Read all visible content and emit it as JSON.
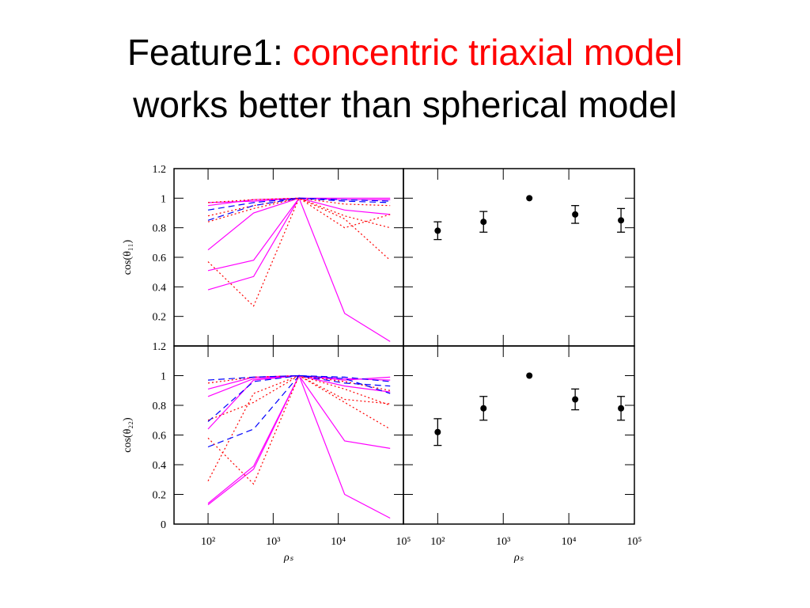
{
  "title": {
    "lead": "Feature1:",
    "highlight": "concentric triaxial model",
    "line2": "works better than spherical model"
  },
  "chart_data": [
    {
      "type": "line",
      "ylabel": "cos(θ₁₁)",
      "log_x": true,
      "xlim": [
        30,
        100000
      ],
      "ylim": [
        0,
        1.2
      ],
      "xticks": [
        {
          "value": 100,
          "label": "10²"
        },
        {
          "value": 1000,
          "label": "10³"
        },
        {
          "value": 10000,
          "label": "10⁴"
        },
        {
          "value": 100000,
          "label": "10⁵"
        }
      ],
      "yticks": [
        0.2,
        0.4,
        0.6,
        0.8,
        1,
        1.2
      ],
      "xtick_labels": false,
      "ytick_labels": true,
      "x": [
        100,
        500,
        2500,
        12500,
        62500
      ],
      "series": [
        {
          "color": "#ff00ff",
          "style": "solid",
          "values": [
            0.65,
            0.9,
            1,
            0.99,
            0.99
          ]
        },
        {
          "color": "#ff00ff",
          "style": "solid",
          "values": [
            0.51,
            0.58,
            1,
            0.92,
            0.89
          ]
        },
        {
          "color": "#ff00ff",
          "style": "solid",
          "values": [
            0.38,
            0.47,
            1,
            0.22,
            0.03
          ]
        },
        {
          "color": "#ff00ff",
          "style": "solid",
          "values": [
            0.95,
            0.99,
            1,
            1.0,
            1.0
          ]
        },
        {
          "color": "#ff00ff",
          "style": "solid",
          "values": [
            0.97,
            0.98,
            1,
            0.99,
            0.99
          ]
        },
        {
          "color": "#ff0000",
          "style": "dotted",
          "values": [
            0.57,
            0.27,
            1,
            0.8,
            0.89
          ]
        },
        {
          "color": "#ff0000",
          "style": "dotted",
          "values": [
            0.84,
            0.93,
            1,
            0.86,
            0.58
          ]
        },
        {
          "color": "#ff0000",
          "style": "dotted",
          "values": [
            0.88,
            0.95,
            1,
            0.88,
            0.8
          ]
        },
        {
          "color": "#ff0000",
          "style": "dotted",
          "values": [
            0.97,
            0.99,
            1,
            0.96,
            0.95
          ]
        },
        {
          "color": "#0000ff",
          "style": "dashed",
          "values": [
            0.85,
            0.95,
            1,
            0.98,
            0.97
          ]
        },
        {
          "color": "#0000ff",
          "style": "dashed",
          "values": [
            0.92,
            0.97,
            1,
            0.99,
            0.98
          ]
        }
      ]
    },
    {
      "type": "errorbar",
      "log_x": true,
      "xlim": [
        30,
        100000
      ],
      "ylim": [
        0,
        1.2
      ],
      "xticks": [
        {
          "value": 100,
          "label": "10²"
        },
        {
          "value": 1000,
          "label": "10³"
        },
        {
          "value": 10000,
          "label": "10⁴"
        },
        {
          "value": 100000,
          "label": "10⁵"
        }
      ],
      "yticks": [
        0.2,
        0.4,
        0.6,
        0.8,
        1,
        1.2
      ],
      "xtick_labels": false,
      "ytick_labels": false,
      "x": [
        100,
        500,
        2500,
        12500,
        62500
      ],
      "color": "#000000",
      "values": [
        0.78,
        0.84,
        1.0,
        0.89,
        0.85
      ],
      "errors": [
        0.06,
        0.07,
        0,
        0.06,
        0.08
      ]
    },
    {
      "type": "line",
      "ylabel": "cos(θ₂₂)",
      "xlabel": "ρₛ",
      "log_x": true,
      "xlim": [
        30,
        100000
      ],
      "ylim": [
        0,
        1.2
      ],
      "xticks": [
        {
          "value": 100,
          "label": "10²"
        },
        {
          "value": 1000,
          "label": "10³"
        },
        {
          "value": 10000,
          "label": "10⁴"
        },
        {
          "value": 100000,
          "label": "10⁵"
        }
      ],
      "yticks": [
        0,
        0.2,
        0.4,
        0.6,
        0.8,
        1,
        1.2
      ],
      "xtick_labels": true,
      "ytick_labels": true,
      "x": [
        100,
        500,
        2500,
        12500,
        62500
      ],
      "series": [
        {
          "color": "#ff00ff",
          "style": "solid",
          "values": [
            0.13,
            0.37,
            1,
            0.2,
            0.04
          ]
        },
        {
          "color": "#ff00ff",
          "style": "solid",
          "values": [
            0.14,
            0.39,
            1,
            0.56,
            0.51
          ]
        },
        {
          "color": "#ff00ff",
          "style": "solid",
          "values": [
            0.86,
            0.98,
            1,
            0.97,
            0.99
          ]
        },
        {
          "color": "#ff00ff",
          "style": "solid",
          "values": [
            0.64,
            0.97,
            1,
            0.93,
            0.89
          ]
        },
        {
          "color": "#ff00ff",
          "style": "solid",
          "values": [
            0.91,
            0.99,
            1,
            0.98,
            0.97
          ]
        },
        {
          "color": "#ff0000",
          "style": "dotted",
          "values": [
            0.29,
            0.88,
            1,
            0.82,
            0.64
          ]
        },
        {
          "color": "#ff0000",
          "style": "dotted",
          "values": [
            0.58,
            0.27,
            1,
            0.84,
            0.81
          ]
        },
        {
          "color": "#ff0000",
          "style": "dotted",
          "values": [
            0.7,
            0.82,
            1,
            0.91,
            0.8
          ]
        },
        {
          "color": "#ff0000",
          "style": "dotted",
          "values": [
            0.95,
            0.99,
            1,
            0.96,
            0.9
          ]
        },
        {
          "color": "#0000ff",
          "style": "dashed",
          "values": [
            0.52,
            0.64,
            1,
            0.95,
            0.93
          ]
        },
        {
          "color": "#0000ff",
          "style": "dashed",
          "values": [
            0.69,
            0.96,
            1,
            0.98,
            0.88
          ]
        },
        {
          "color": "#0000ff",
          "style": "dashed",
          "values": [
            0.97,
            0.99,
            1,
            0.99,
            0.96
          ]
        }
      ]
    },
    {
      "type": "errorbar",
      "xlabel": "ρₛ",
      "log_x": true,
      "xlim": [
        30,
        100000
      ],
      "ylim": [
        0,
        1.2
      ],
      "xticks": [
        {
          "value": 100,
          "label": "10²"
        },
        {
          "value": 1000,
          "label": "10³"
        },
        {
          "value": 10000,
          "label": "10⁴"
        },
        {
          "value": 100000,
          "label": "10⁵"
        }
      ],
      "yticks": [
        0,
        0.2,
        0.4,
        0.6,
        0.8,
        1,
        1.2
      ],
      "xtick_labels": true,
      "ytick_labels": false,
      "x": [
        100,
        500,
        2500,
        12500,
        62500
      ],
      "color": "#000000",
      "values": [
        0.62,
        0.78,
        1.0,
        0.84,
        0.78
      ],
      "errors": [
        0.09,
        0.08,
        0,
        0.07,
        0.08
      ]
    }
  ]
}
